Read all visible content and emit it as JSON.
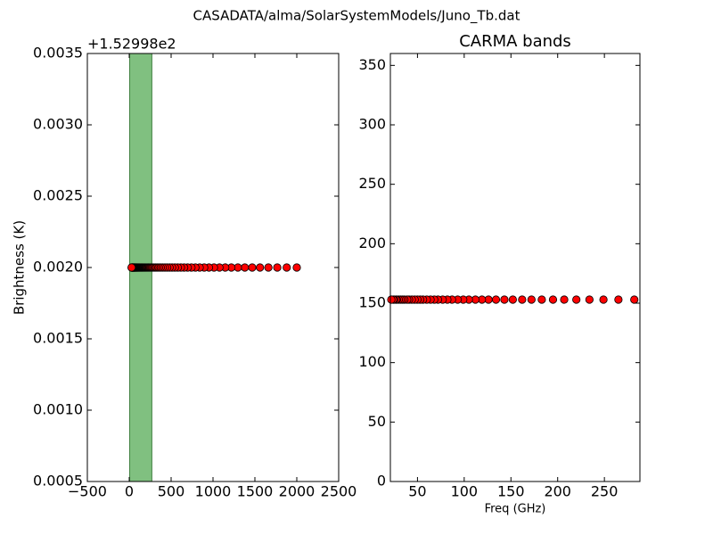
{
  "title": "CASADATA/alma/SolarSystemModels/Juno_Tb.dat",
  "chart_data": [
    {
      "type": "scatter",
      "offset_text": "+1.52998e2",
      "y_label": "Brightness (K)",
      "xlim": [
        -500,
        2500
      ],
      "xticks": [
        {
          "value": -500,
          "label": "−500"
        },
        0,
        500,
        1000,
        1500,
        2000,
        2500
      ],
      "ylim": [
        0.0005,
        0.0035
      ],
      "yticks": [
        {
          "value": 0.0005,
          "label": "0.0005"
        },
        {
          "value": 0.001,
          "label": "0.0010"
        },
        {
          "value": 0.0015,
          "label": "0.0015"
        },
        {
          "value": 0.002,
          "label": "0.0020"
        },
        {
          "value": 0.0025,
          "label": "0.0025"
        },
        {
          "value": 0.003,
          "label": "0.0030"
        },
        {
          "value": 0.0035,
          "label": "0.0035"
        }
      ],
      "spans": [
        {
          "x": [
            5,
            270
          ],
          "color": "#80c080"
        }
      ],
      "color": "#ff0000",
      "x": [
        2000,
        1880,
        1767,
        1661,
        1561,
        1468,
        1380,
        1297,
        1219,
        1146,
        1077,
        1012,
        952,
        895,
        841,
        790,
        743,
        698,
        656,
        617,
        580,
        545,
        512,
        482,
        453,
        426,
        400,
        376,
        354,
        332,
        312,
        294,
        276,
        259,
        244,
        229,
        215,
        202,
        190,
        179,
        168,
        158,
        149,
        140,
        131,
        123,
        116,
        109,
        102,
        96,
        90,
        85,
        80,
        75,
        70,
        66,
        62,
        58,
        55,
        52,
        49,
        46,
        43,
        40,
        38,
        36,
        34,
        32,
        30,
        28
      ],
      "values": [
        0.002,
        0.002,
        0.002,
        0.002,
        0.002,
        0.002,
        0.002,
        0.002,
        0.002,
        0.002,
        0.002,
        0.002,
        0.002,
        0.002,
        0.002,
        0.002,
        0.002,
        0.002,
        0.002,
        0.002,
        0.002,
        0.002,
        0.002,
        0.002,
        0.002,
        0.002,
        0.002,
        0.002,
        0.002,
        0.002,
        0.002,
        0.002,
        0.002,
        0.002,
        0.002,
        0.002,
        0.002,
        0.002,
        0.002,
        0.002,
        0.002,
        0.002,
        0.002,
        0.002,
        0.002,
        0.002,
        0.002,
        0.002,
        0.002,
        0.002,
        0.002,
        0.002,
        0.002,
        0.002,
        0.002,
        0.002,
        0.002,
        0.002,
        0.002,
        0.002,
        0.002,
        0.002,
        0.002,
        0.002,
        0.002,
        0.002,
        0.002,
        0.002,
        0.002,
        0.002
      ]
    },
    {
      "type": "scatter",
      "title": "CARMA bands",
      "x_label": "Freq (GHz)",
      "xlim": [
        21,
        288
      ],
      "xticks": [
        50,
        100,
        150,
        200,
        250
      ],
      "ylim": [
        0,
        360
      ],
      "yticks": [
        0,
        50,
        100,
        150,
        200,
        250,
        300,
        350
      ],
      "color": "#ff0000",
      "x": [
        282,
        265,
        249,
        234,
        220,
        207,
        195,
        183,
        172,
        162,
        152,
        143,
        134,
        126,
        119,
        112,
        105,
        99,
        93,
        87,
        82,
        77,
        72,
        68,
        64,
        60,
        56,
        53,
        50,
        47,
        44,
        41,
        39,
        36,
        34,
        32,
        30,
        28,
        27,
        25,
        24,
        22
      ],
      "values": [
        153,
        153,
        153,
        153,
        153,
        153,
        153,
        153,
        153,
        153,
        153,
        153,
        153,
        153,
        153,
        153,
        153,
        153,
        153,
        153,
        153,
        153,
        153,
        153,
        153,
        153,
        153,
        153,
        153,
        153,
        153,
        153,
        153,
        153,
        153,
        153,
        153,
        153,
        153,
        153,
        153,
        153
      ]
    }
  ]
}
